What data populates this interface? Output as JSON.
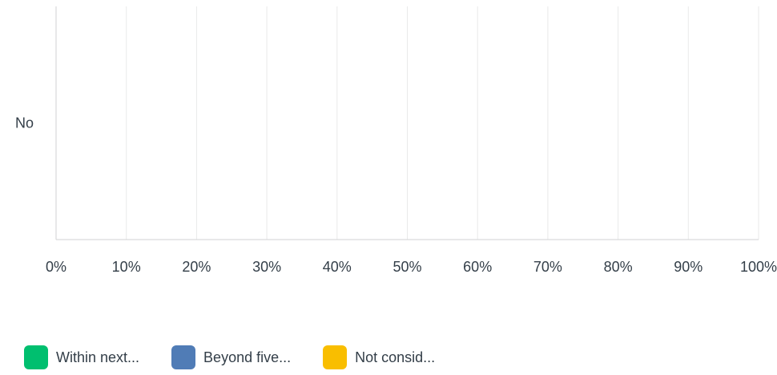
{
  "chart_data": {
    "type": "bar",
    "orientation": "horizontal",
    "stacked": true,
    "categories": [
      "No"
    ],
    "series": [
      {
        "name": "Within next...",
        "values": [
          0
        ],
        "color": "#00bf6f"
      },
      {
        "name": "Beyond five...",
        "values": [
          0
        ],
        "color": "#507cb6"
      },
      {
        "name": "Not consid...",
        "values": [
          0
        ],
        "color": "#f9be00"
      }
    ],
    "x_ticks": [
      "0%",
      "10%",
      "20%",
      "30%",
      "40%",
      "50%",
      "60%",
      "70%",
      "80%",
      "90%",
      "100%"
    ],
    "xlim": [
      0,
      100
    ],
    "grid": true,
    "legend_position": "bottom-left"
  }
}
